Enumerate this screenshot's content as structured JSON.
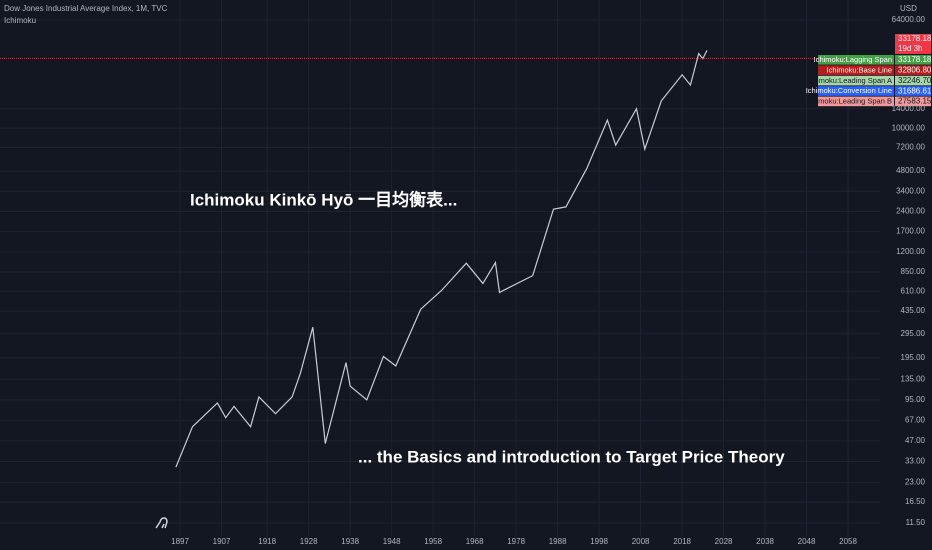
{
  "chart_data": {
    "type": "line",
    "title": "Dow Jones Industrial Average Index, 1M, TVC",
    "subtitle": "Ichimoku",
    "currency": "USD",
    "annotations": [
      "Ichimoku Kinkō Hyō 一目均衡表...",
      "... the Basics and introduction to Target Price Theory"
    ],
    "x": [
      1896,
      1900,
      1906,
      1908,
      1910,
      1914,
      1916,
      1920,
      1924,
      1926,
      1929,
      1932,
      1937,
      1938,
      1942,
      1946,
      1949,
      1955,
      1960,
      1966,
      1970,
      1973,
      1974,
      1982,
      1987,
      1990,
      1995,
      2000,
      2002,
      2007,
      2009,
      2013,
      2018,
      2020,
      2022,
      2023,
      2024
    ],
    "values": [
      30,
      60,
      90,
      70,
      85,
      60,
      100,
      75,
      100,
      150,
      330,
      45,
      180,
      120,
      95,
      200,
      170,
      450,
      620,
      990,
      700,
      1000,
      600,
      800,
      2500,
      2600,
      5000,
      11500,
      7500,
      14000,
      7000,
      16000,
      25000,
      21000,
      36000,
      33000,
      38000
    ],
    "color": "#c9ccd4",
    "log_scale": true,
    "grid": true,
    "xlim": [
      1853.6,
      2065.7
    ],
    "xticks": [
      1897,
      1907,
      1918,
      1928,
      1938,
      1948,
      1958,
      1968,
      1978,
      1988,
      1998,
      2008,
      2018,
      2028,
      2038,
      2048,
      2058
    ],
    "ylim": [
      9.05,
      90200
    ],
    "yticks": [
      {
        "value": 64000,
        "label": "64000.00"
      },
      {
        "value": 14000,
        "label": "14000.00"
      },
      {
        "value": 10000,
        "label": "10000.00"
      },
      {
        "value": 7200,
        "label": "7200.00"
      },
      {
        "value": 4800,
        "label": "4800.00"
      },
      {
        "value": 3400,
        "label": "3400.00"
      },
      {
        "value": 2400,
        "label": "2400.00"
      },
      {
        "value": 1700,
        "label": "1700.00"
      },
      {
        "value": 1200,
        "label": "1200.00"
      },
      {
        "value": 850,
        "label": "850.00"
      },
      {
        "value": 610,
        "label": "610.00"
      },
      {
        "value": 435,
        "label": "435.00"
      },
      {
        "value": 295,
        "label": "295.00"
      },
      {
        "value": 195,
        "label": "195.00"
      },
      {
        "value": 135,
        "label": "135.00"
      },
      {
        "value": 95,
        "label": "95.00"
      },
      {
        "value": 67,
        "label": "67.00"
      },
      {
        "value": 47,
        "label": "47.00"
      },
      {
        "value": 33,
        "label": "33.00"
      },
      {
        "value": 23,
        "label": "23.00"
      },
      {
        "value": 16.5,
        "label": "16.50"
      },
      {
        "value": 11.5,
        "label": "11.50"
      }
    ],
    "last_price": {
      "value": 33178.18,
      "label": "33178.18",
      "countdown": "19d 3h",
      "color": "#f23645"
    },
    "indicator_tags": [
      {
        "name": "Ichimoku:Lagging Span",
        "value": 33178.18,
        "label": "33178.18",
        "color": "#43a047"
      },
      {
        "name": "Ichimoku:Base Line",
        "value": 32806.8,
        "label": "32806.80",
        "color": "#b71c1c"
      },
      {
        "name": "Ichimoku:Leading Span A",
        "value": 32246.7,
        "label": "32246.70",
        "color": "#a5d6a7"
      },
      {
        "name": "Ichimoku:Conversion Line",
        "value": 31686.61,
        "label": "31686.61",
        "color": "#2962ff"
      },
      {
        "name": "Ichimoku:Leading Span B",
        "value": 27583.15,
        "label": "27583.15",
        "color": "#ef9a9a"
      }
    ]
  }
}
